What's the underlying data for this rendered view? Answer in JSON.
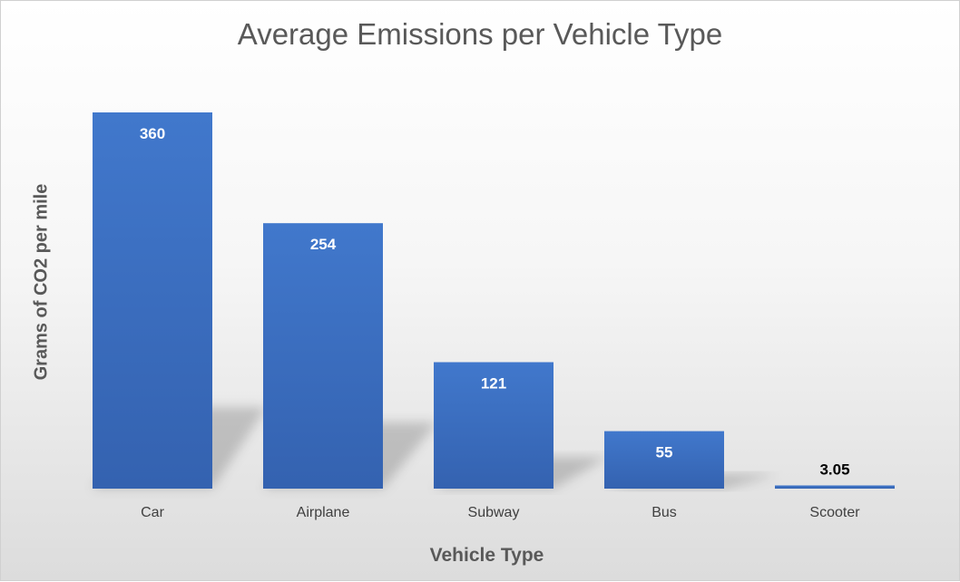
{
  "chart_data": {
    "type": "bar",
    "title": "Average Emissions per Vehicle Type",
    "xlabel": "Vehicle Type",
    "ylabel": "Grams of CO2 per mile",
    "categories": [
      "Car",
      "Airplane",
      "Subway",
      "Bus",
      "Scooter"
    ],
    "values": [
      360,
      254,
      121,
      55,
      3.05
    ],
    "value_labels": [
      "360",
      "254",
      "121",
      "55",
      "3.05"
    ],
    "ylim": [
      0,
      360
    ],
    "grid": false,
    "legend": "none",
    "bar_color": "#3a6fc4",
    "data_label_color_inside": "#ffffff",
    "data_label_color_outside": "#000000"
  }
}
